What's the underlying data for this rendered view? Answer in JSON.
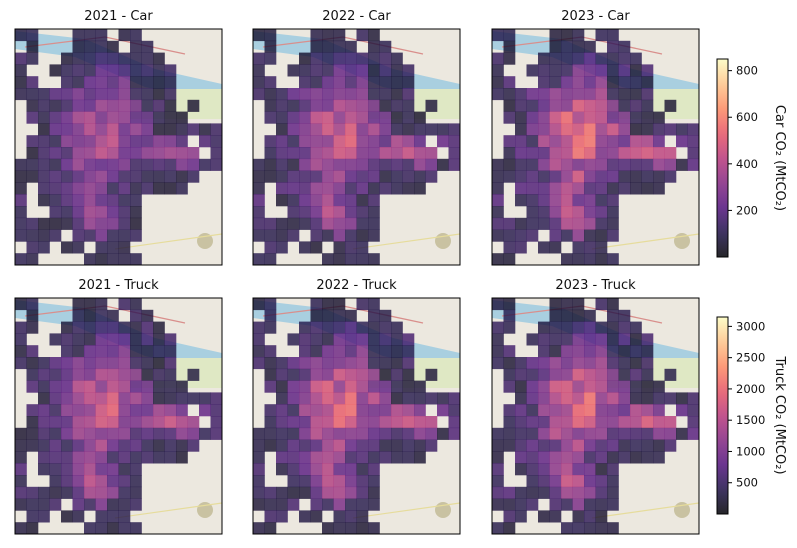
{
  "chart_data": {
    "type": "heatmap",
    "rows": [
      {
        "metric": "Car",
        "colorbar": {
          "label": "Car CO₂ (MtCO₂)",
          "ticks": [
            200,
            400,
            600,
            800
          ],
          "range": [
            0,
            850
          ]
        },
        "panels": [
          {
            "title": "2021 - Car",
            "scale": 0.7
          },
          {
            "title": "2022 - Car",
            "scale": 0.85
          },
          {
            "title": "2023 - Car",
            "scale": 1.0
          }
        ]
      },
      {
        "metric": "Truck",
        "colorbar": {
          "label": "Truck CO₂ (MtCO₂)",
          "ticks": [
            500,
            1000,
            1500,
            2000,
            2500,
            3000
          ],
          "range": [
            0,
            3150
          ]
        },
        "panels": [
          {
            "title": "2021 - Truck",
            "scale": 0.85
          },
          {
            "title": "2022 - Truck",
            "scale": 0.95
          },
          {
            "title": "2023 - Truck",
            "scale": 0.95
          }
        ]
      }
    ],
    "colormap": "magma",
    "grid_cols": 18,
    "grid_rows": 20,
    "cell_alpha": 0.78,
    "basemap": "street map with river and roads",
    "colors": {
      "magma_stops": [
        "#000004",
        "#1d1147",
        "#51127c",
        "#822681",
        "#b73779",
        "#e75263",
        "#fc8961",
        "#fec488",
        "#fcfdbf"
      ],
      "land": "#ece8df",
      "water": "#a9cfe0",
      "park": "#dfe8c4",
      "road": "#d98f8c"
    }
  }
}
